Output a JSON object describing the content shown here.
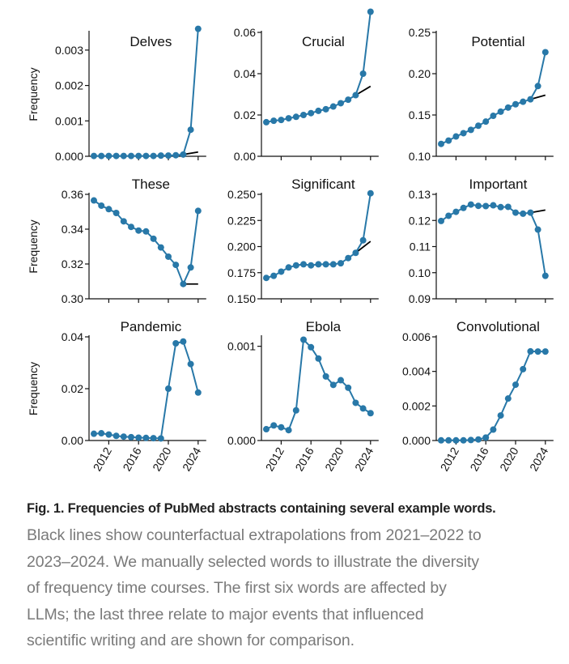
{
  "colors": {
    "series": "#2878a8",
    "counterfactual": "#000000",
    "axis": "#111111"
  },
  "chart_data": [
    {
      "type": "line",
      "title": "Delves",
      "xlabel": "",
      "ylabel": "Frequency",
      "x": [
        2010,
        2011,
        2012,
        2013,
        2014,
        2015,
        2016,
        2017,
        2018,
        2019,
        2020,
        2021,
        2022,
        2023,
        2024
      ],
      "series": [
        {
          "name": "observed",
          "values": [
            1e-05,
            1e-05,
            1e-05,
            1e-05,
            1e-05,
            1e-05,
            1e-05,
            1e-05,
            1e-05,
            2e-05,
            2e-05,
            3e-05,
            5e-05,
            0.00075,
            0.0036
          ]
        },
        {
          "name": "counterfactual",
          "x": [
            2022,
            2024
          ],
          "values": [
            5e-05,
            0.00012
          ]
        }
      ],
      "ylim": [
        0,
        0.0035
      ],
      "yticks": [
        "0.000",
        "0.001",
        "0.002",
        "0.003"
      ],
      "ytick_values": [
        0,
        0.001,
        0.002,
        0.003
      ],
      "xticks": [
        "2012",
        "2016",
        "2020",
        "2024"
      ],
      "show_xticklabels": false
    },
    {
      "type": "line",
      "title": "Crucial",
      "xlabel": "",
      "ylabel": "",
      "x": [
        2010,
        2011,
        2012,
        2013,
        2014,
        2015,
        2016,
        2017,
        2018,
        2019,
        2020,
        2021,
        2022,
        2023,
        2024
      ],
      "series": [
        {
          "name": "observed",
          "values": [
            0.0165,
            0.0172,
            0.0176,
            0.0184,
            0.0191,
            0.02,
            0.0209,
            0.022,
            0.0228,
            0.0241,
            0.0257,
            0.0274,
            0.0296,
            0.04,
            0.07
          ]
        },
        {
          "name": "counterfactual",
          "x": [
            2022,
            2024
          ],
          "values": [
            0.0296,
            0.0339
          ]
        }
      ],
      "ylim": [
        0,
        0.06
      ],
      "yticks": [
        "0.00",
        "0.02",
        "0.04",
        "0.06"
      ],
      "ytick_values": [
        0,
        0.02,
        0.04,
        0.06
      ],
      "xticks": [
        "2012",
        "2016",
        "2020",
        "2024"
      ],
      "show_xticklabels": false
    },
    {
      "type": "line",
      "title": "Potential",
      "xlabel": "",
      "ylabel": "",
      "x": [
        2010,
        2011,
        2012,
        2013,
        2014,
        2015,
        2016,
        2017,
        2018,
        2019,
        2020,
        2021,
        2022,
        2023,
        2024
      ],
      "series": [
        {
          "name": "observed",
          "values": [
            0.115,
            0.119,
            0.124,
            0.128,
            0.132,
            0.137,
            0.142,
            0.149,
            0.154,
            0.159,
            0.163,
            0.166,
            0.169,
            0.185,
            0.226
          ]
        },
        {
          "name": "counterfactual",
          "x": [
            2022,
            2024
          ],
          "values": [
            0.169,
            0.174
          ]
        }
      ],
      "ylim": [
        0.1,
        0.25
      ],
      "yticks": [
        "0.10",
        "0.15",
        "0.20",
        "0.25"
      ],
      "ytick_values": [
        0.1,
        0.15,
        0.2,
        0.25
      ],
      "xticks": [
        "2012",
        "2016",
        "2020",
        "2024"
      ],
      "show_xticklabels": false
    },
    {
      "type": "line",
      "title": "These",
      "xlabel": "",
      "ylabel": "Frequency",
      "x": [
        2010,
        2011,
        2012,
        2013,
        2014,
        2015,
        2016,
        2017,
        2018,
        2019,
        2020,
        2021,
        2022,
        2023,
        2024
      ],
      "series": [
        {
          "name": "observed",
          "values": [
            0.3565,
            0.3535,
            0.3515,
            0.3493,
            0.3445,
            0.3413,
            0.3392,
            0.3387,
            0.3345,
            0.3295,
            0.3242,
            0.3195,
            0.3085,
            0.318,
            0.3505
          ]
        },
        {
          "name": "counterfactual",
          "x": [
            2022,
            2024
          ],
          "values": [
            0.3085,
            0.3085
          ]
        }
      ],
      "ylim": [
        0.3,
        0.36
      ],
      "yticks": [
        "0.30",
        "0.32",
        "0.34",
        "0.36"
      ],
      "ytick_values": [
        0.3,
        0.32,
        0.34,
        0.36
      ],
      "xticks": [
        "2012",
        "2016",
        "2020",
        "2024"
      ],
      "show_xticklabels": false
    },
    {
      "type": "line",
      "title": "Significant",
      "xlabel": "",
      "ylabel": "",
      "x": [
        2010,
        2011,
        2012,
        2013,
        2014,
        2015,
        2016,
        2017,
        2018,
        2019,
        2020,
        2021,
        2022,
        2023,
        2024
      ],
      "series": [
        {
          "name": "observed",
          "values": [
            0.17,
            0.172,
            0.176,
            0.18,
            0.182,
            0.183,
            0.182,
            0.183,
            0.183,
            0.183,
            0.184,
            0.189,
            0.194,
            0.206,
            0.251
          ]
        },
        {
          "name": "counterfactual",
          "x": [
            2022,
            2024
          ],
          "values": [
            0.194,
            0.205
          ]
        }
      ],
      "ylim": [
        0.15,
        0.25
      ],
      "yticks": [
        "0.150",
        "0.175",
        "0.200",
        "0.225",
        "0.250"
      ],
      "ytick_values": [
        0.15,
        0.175,
        0.2,
        0.225,
        0.25
      ],
      "xticks": [
        "2012",
        "2016",
        "2020",
        "2024"
      ],
      "show_xticklabels": false
    },
    {
      "type": "line",
      "title": "Important",
      "xlabel": "",
      "ylabel": "",
      "x": [
        2010,
        2011,
        2012,
        2013,
        2014,
        2015,
        2016,
        2017,
        2018,
        2019,
        2020,
        2021,
        2022,
        2023,
        2024
      ],
      "series": [
        {
          "name": "observed",
          "values": [
            0.1198,
            0.1218,
            0.1233,
            0.1248,
            0.1261,
            0.1256,
            0.1255,
            0.1258,
            0.1251,
            0.1252,
            0.123,
            0.1226,
            0.123,
            0.1165,
            0.0988
          ]
        },
        {
          "name": "counterfactual",
          "x": [
            2022,
            2024
          ],
          "values": [
            0.123,
            0.124
          ]
        }
      ],
      "ylim": [
        0.09,
        0.13
      ],
      "yticks": [
        "0.09",
        "0.10",
        "0.11",
        "0.12",
        "0.13"
      ],
      "ytick_values": [
        0.09,
        0.1,
        0.11,
        0.12,
        0.13
      ],
      "xticks": [
        "2012",
        "2016",
        "2020",
        "2024"
      ],
      "show_xticklabels": false
    },
    {
      "type": "line",
      "title": "Pandemic",
      "xlabel": "",
      "ylabel": "Frequency",
      "x": [
        2010,
        2011,
        2012,
        2013,
        2014,
        2015,
        2016,
        2017,
        2018,
        2019,
        2020,
        2021,
        2022,
        2023,
        2024
      ],
      "series": [
        {
          "name": "observed",
          "values": [
            0.0026,
            0.0028,
            0.0023,
            0.0018,
            0.0015,
            0.0013,
            0.0011,
            0.001,
            0.0009,
            0.0008,
            0.02,
            0.0375,
            0.0382,
            0.0295,
            0.0185
          ]
        }
      ],
      "ylim": [
        0,
        0.04
      ],
      "yticks": [
        "0.00",
        "0.02",
        "0.04"
      ],
      "ytick_values": [
        0,
        0.02,
        0.04
      ],
      "xticks": [
        "2012",
        "2016",
        "2020",
        "2024"
      ],
      "show_xticklabels": true
    },
    {
      "type": "line",
      "title": "Ebola",
      "xlabel": "",
      "ylabel": "",
      "x": [
        2010,
        2011,
        2012,
        2013,
        2014,
        2015,
        2016,
        2017,
        2018,
        2019,
        2020,
        2021,
        2022,
        2023,
        2024
      ],
      "series": [
        {
          "name": "observed",
          "values": [
            0.00012,
            0.00016,
            0.00014,
            0.00011,
            0.00032,
            0.00107,
            0.00099,
            0.00087,
            0.00068,
            0.00059,
            0.00064,
            0.00056,
            0.0004,
            0.00034,
            0.00029
          ]
        }
      ],
      "ylim": [
        0,
        0.0011
      ],
      "yticks": [
        "0.000",
        "0.001"
      ],
      "ytick_values": [
        0,
        0.001
      ],
      "xticks": [
        "2012",
        "2016",
        "2020",
        "2024"
      ],
      "show_xticklabels": true
    },
    {
      "type": "line",
      "title": "Convolutional",
      "xlabel": "",
      "ylabel": "",
      "x": [
        2010,
        2011,
        2012,
        2013,
        2014,
        2015,
        2016,
        2017,
        2018,
        2019,
        2020,
        2021,
        2022,
        2023,
        2024
      ],
      "series": [
        {
          "name": "observed",
          "values": [
            1e-05,
            1e-05,
            1e-05,
            1e-05,
            3e-05,
            6e-05,
            0.00017,
            0.00063,
            0.00145,
            0.00243,
            0.00323,
            0.00413,
            0.00516,
            0.00515,
            0.00515
          ]
        }
      ],
      "ylim": [
        0,
        0.006
      ],
      "yticks": [
        "0.000",
        "0.002",
        "0.004",
        "0.006"
      ],
      "ytick_values": [
        0,
        0.002,
        0.004,
        0.006
      ],
      "xticks": [
        "2012",
        "2016",
        "2020",
        "2024"
      ],
      "show_xticklabels": true
    }
  ],
  "caption": {
    "title": "Fig. 1. Frequencies of PubMed abstracts containing several example words.",
    "lines": [
      "Black lines show counterfactual extrapolations from 2021–2022 to",
      "2023–2024. We manually selected words to illustrate the diversity",
      "of frequency time courses. The first six words are affected by",
      "LLMs; the last three relate to major events that influenced",
      "scientific writing and are shown for comparison."
    ]
  }
}
